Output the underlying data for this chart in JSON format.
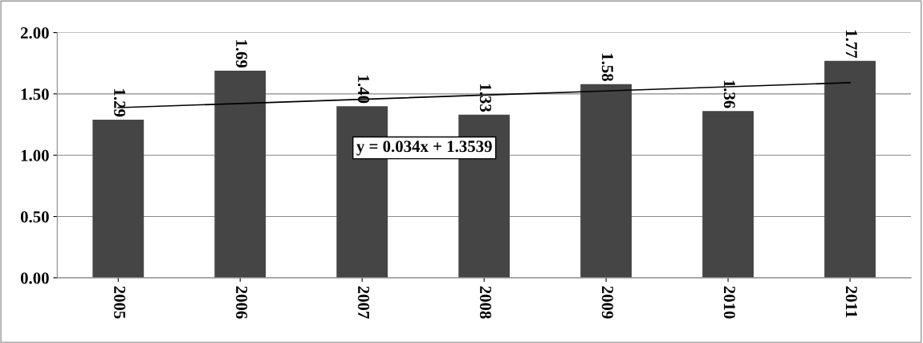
{
  "chart_data": {
    "type": "bar",
    "categories": [
      "2005",
      "2006",
      "2007",
      "2008",
      "2009",
      "2010",
      "2011"
    ],
    "series": [
      {
        "color": "#454545",
        "values": [
          1.29,
          1.69,
          1.4,
          1.33,
          1.58,
          1.36,
          1.77
        ],
        "value_labels": [
          "1.29",
          "1.69",
          "1.40",
          "1.33",
          "1.58",
          "1.36",
          "1.77"
        ]
      },
      {
        "type": "line",
        "color": "#000000",
        "values": [
          1.388,
          1.422,
          1.456,
          1.49,
          1.524,
          1.558,
          1.592
        ]
      }
    ],
    "annotations": [
      "y = 0.034x + 1.3539"
    ],
    "ylim": [
      0,
      2
    ],
    "yticks": [
      {
        "value": 0,
        "label": "0.00"
      },
      {
        "value": 0.5,
        "label": "0.50"
      },
      {
        "value": 1,
        "label": "1.00"
      },
      {
        "value": 1.5,
        "label": "1.50"
      },
      {
        "value": 2,
        "label": "2.00"
      }
    ],
    "grid": "y",
    "legend": false
  }
}
